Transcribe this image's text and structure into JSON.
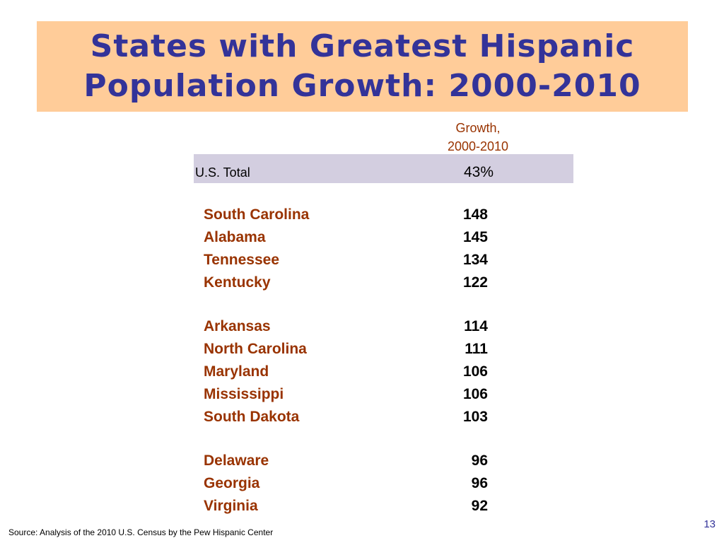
{
  "title": {
    "line1": "States with Greatest Hispanic",
    "line2": "Population Growth: 2000-2010"
  },
  "column_header": {
    "line1": "Growth,",
    "line2": "2000-2010"
  },
  "us_total": {
    "label": "U.S. Total",
    "value": "43%"
  },
  "groups": [
    {
      "rows": [
        {
          "state": "South Carolina",
          "growth": "148"
        },
        {
          "state": "Alabama",
          "growth": "145"
        },
        {
          "state": "Tennessee",
          "growth": "134"
        },
        {
          "state": "Kentucky",
          "growth": "122"
        }
      ]
    },
    {
      "rows": [
        {
          "state": "Arkansas",
          "growth": "114"
        },
        {
          "state": "North Carolina",
          "growth": "111"
        },
        {
          "state": "Maryland",
          "growth": "106"
        },
        {
          "state": "Mississippi",
          "growth": "106"
        },
        {
          "state": "South Dakota",
          "growth": "103"
        }
      ]
    },
    {
      "rows": [
        {
          "state": "Delaware",
          "growth": "96"
        },
        {
          "state": "Georgia",
          "growth": "96"
        },
        {
          "state": "Virginia",
          "growth": "92"
        }
      ]
    }
  ],
  "source": "Source: Analysis of the 2010 U.S. Census by the Pew Hispanic Center",
  "page_number": "13",
  "colors": {
    "title_text": "#333399",
    "title_background": "#ffcc99",
    "state_text": "#993300",
    "total_row_background": "#d3cee0"
  }
}
